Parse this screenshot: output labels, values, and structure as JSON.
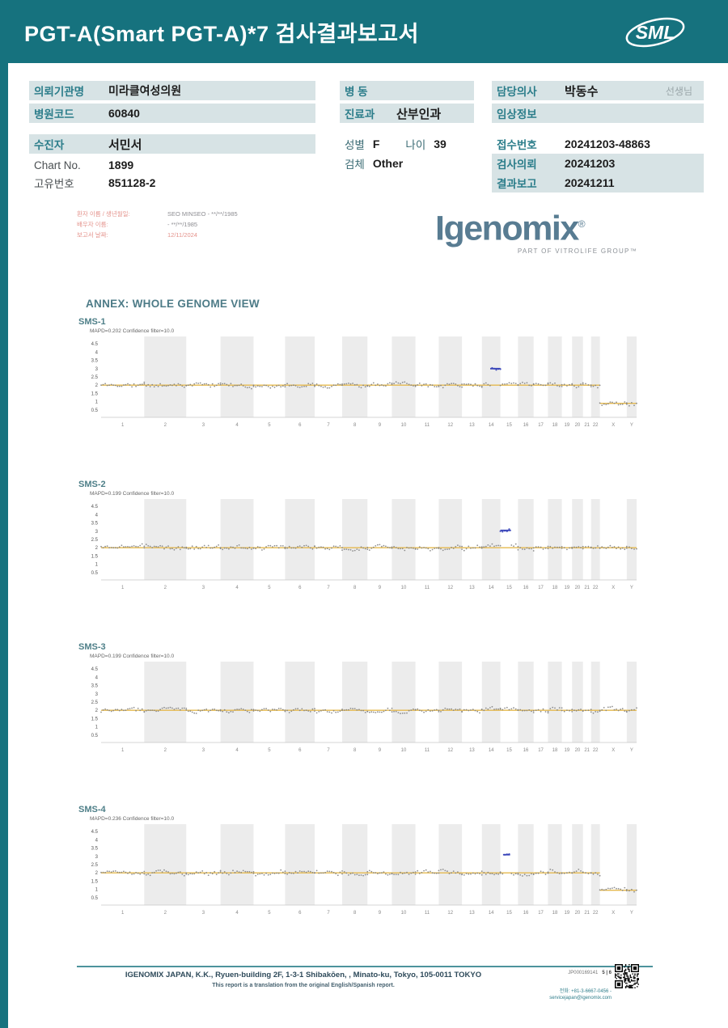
{
  "header": {
    "title": "PGT-A(Smart  PGT-A)*7 검사결과보고서",
    "logo_text": "SML"
  },
  "info": {
    "left": [
      {
        "label": "의뢰기관명",
        "value": "미라클여성의원"
      },
      {
        "label": "병원코드",
        "value": "60840"
      },
      {
        "label": "수진자",
        "value": "서민서"
      },
      {
        "label": "Chart No.",
        "value": "1899"
      },
      {
        "label": "고유번호",
        "value": "851128-2"
      }
    ],
    "middle": [
      {
        "label": "병  동",
        "value": ""
      },
      {
        "label": "진료과",
        "value": "산부인과"
      },
      {
        "label": "성별",
        "value": "F",
        "label2": "나이",
        "value2": "39"
      },
      {
        "label": "검체",
        "value": "Other"
      }
    ],
    "right": [
      {
        "label": "담당의사",
        "value": "박동수",
        "suffix": "선생님"
      },
      {
        "label": "임상정보",
        "value": ""
      },
      {
        "label": "접수번호",
        "value": "20241203-48863"
      },
      {
        "label": "검사의뢰",
        "value": "20241203"
      },
      {
        "label": "결과보고",
        "value": "20241211"
      }
    ]
  },
  "patient_block": {
    "rows": [
      {
        "label": "환자 이름 / 생년월일:",
        "value": "SEO MINSEO - **/**/1985"
      },
      {
        "label": "배우자 이름:",
        "value": "- **/**/1985"
      },
      {
        "label": "보고서 날짜:",
        "value": "12/11/2024"
      }
    ],
    "brand": "Igenomix",
    "brand_reg": "®",
    "brand_sub": "PART OF VITROLIFE GROUP™"
  },
  "annex_title": "ANNEX: WHOLE GENOME VIEW",
  "chart_data": [
    {
      "id": "SMS-1",
      "type": "scatter",
      "title": "SMS-1",
      "subtitle": "MAPD=0.202 Confidence filter=10.0",
      "ylim": [
        0.5,
        4.5
      ],
      "yticks": [
        0.5,
        1,
        1.5,
        2,
        2.5,
        3,
        3.5,
        4,
        4.5
      ],
      "categories": [
        "1",
        "2",
        "3",
        "4",
        "5",
        "6",
        "7",
        "8",
        "9",
        "10",
        "11",
        "12",
        "13",
        "14",
        "15",
        "16",
        "17",
        "18",
        "19",
        "20",
        "21",
        "22",
        "X",
        "Y"
      ],
      "baseline": 2,
      "levels": {
        "default": 2,
        "X": 0.9,
        "Y": 0.9
      },
      "anomalies": [
        {
          "chrom": "14",
          "value": 3.0,
          "start": 0.45,
          "end": 1.0
        }
      ],
      "colors": {
        "baseline": "#e5b94e",
        "points": "#7f7f7f",
        "anomaly": "#3642b8"
      }
    },
    {
      "id": "SMS-2",
      "type": "scatter",
      "title": "SMS-2",
      "subtitle": "MAPD=0.199 Confidence filter=10.0",
      "ylim": [
        0.5,
        4.5
      ],
      "yticks": [
        0.5,
        1,
        1.5,
        2,
        2.5,
        3,
        3.5,
        4,
        4.5
      ],
      "categories": [
        "1",
        "2",
        "3",
        "4",
        "5",
        "6",
        "7",
        "8",
        "9",
        "10",
        "11",
        "12",
        "13",
        "14",
        "15",
        "16",
        "17",
        "18",
        "19",
        "20",
        "21",
        "22",
        "X",
        "Y"
      ],
      "baseline": 2,
      "levels": {
        "default": 2
      },
      "anomalies": [
        {
          "chrom": "15",
          "value": 3.05,
          "start": 0.0,
          "end": 0.6
        }
      ],
      "colors": {
        "baseline": "#e5b94e",
        "points": "#7f7f7f",
        "anomaly": "#3642b8"
      }
    },
    {
      "id": "SMS-3",
      "type": "scatter",
      "title": "SMS-3",
      "subtitle": "MAPD=0.199 Confidence filter=10.0",
      "ylim": [
        0.5,
        4.5
      ],
      "yticks": [
        0.5,
        1,
        1.5,
        2,
        2.5,
        3,
        3.5,
        4,
        4.5
      ],
      "categories": [
        "1",
        "2",
        "3",
        "4",
        "5",
        "6",
        "7",
        "8",
        "9",
        "10",
        "11",
        "12",
        "13",
        "14",
        "15",
        "16",
        "17",
        "18",
        "19",
        "20",
        "21",
        "22",
        "X",
        "Y"
      ],
      "baseline": 2,
      "levels": {
        "default": 2
      },
      "anomalies": [],
      "colors": {
        "baseline": "#e5b94e",
        "points": "#7f7f7f",
        "anomaly": "#3642b8"
      }
    },
    {
      "id": "SMS-4",
      "type": "scatter",
      "title": "SMS-4",
      "subtitle": "MAPD=0.236 Confidence filter=10.0",
      "ylim": [
        0.5,
        4.5
      ],
      "yticks": [
        0.5,
        1,
        1.5,
        2,
        2.5,
        3,
        3.5,
        4,
        4.5
      ],
      "categories": [
        "1",
        "2",
        "3",
        "4",
        "5",
        "6",
        "7",
        "8",
        "9",
        "10",
        "11",
        "12",
        "13",
        "14",
        "15",
        "16",
        "17",
        "18",
        "19",
        "20",
        "21",
        "22",
        "X",
        "Y"
      ],
      "baseline": 2,
      "levels": {
        "default": 2,
        "X": 0.95,
        "Y": 0.95
      },
      "anomalies": [
        {
          "chrom": "15",
          "value": 3.1,
          "start": 0.15,
          "end": 0.55
        }
      ],
      "colors": {
        "baseline": "#e5b94e",
        "points": "#7f7f7f",
        "anomaly": "#3642b8"
      }
    }
  ],
  "footer": {
    "address": "IGENOMIX JAPAN, K.K., Ryuen-building 2F, 1-3-1 Shibakōen, , Minato-ku, Tokyo, 105-0011 TOKYO",
    "note": "This report is a translation from the original English/Spanish report.",
    "doc_id": "JP000169141",
    "page": "5 | 6",
    "phone": "전화: +81-3-6667-0456 -",
    "email": "servicejapan@igenomix.com"
  }
}
